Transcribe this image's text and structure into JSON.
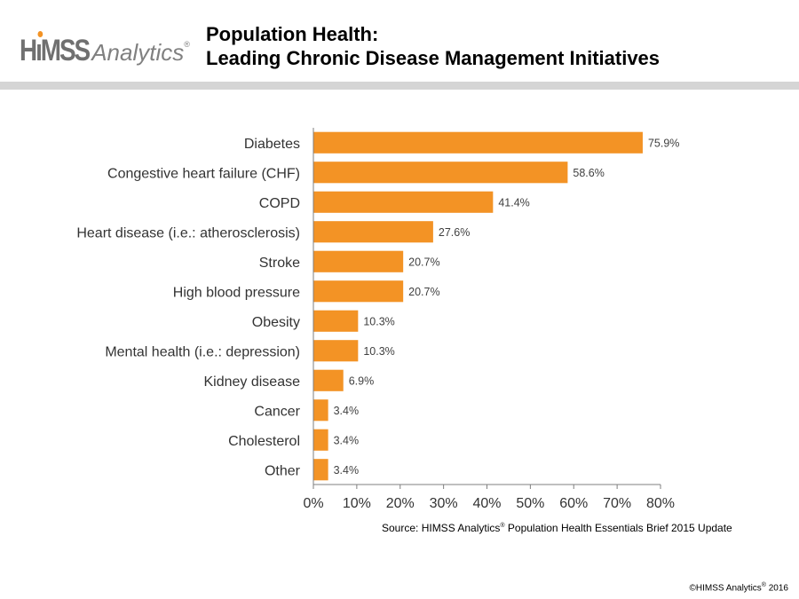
{
  "header": {
    "logo_brand": "HiMSS",
    "logo_product": "Analytics",
    "logo_mark": "®",
    "title_line1": "Population Health:",
    "title_line2": "Leading Chronic Disease Management Initiatives"
  },
  "chart_data": {
    "type": "bar",
    "orientation": "horizontal",
    "categories": [
      "Diabetes",
      "Congestive heart failure (CHF)",
      "COPD",
      "Heart disease (i.e.: atherosclerosis)",
      "Stroke",
      "High blood pressure",
      "Obesity",
      "Mental health (i.e.: depression)",
      "Kidney disease",
      "Cancer",
      "Cholesterol",
      "Other"
    ],
    "values": [
      75.9,
      58.6,
      41.4,
      27.6,
      20.7,
      20.7,
      10.3,
      10.3,
      6.9,
      3.4,
      3.4,
      3.4
    ],
    "data_labels": [
      "75.9%",
      "58.6%",
      "41.4%",
      "27.6%",
      "20.7%",
      "20.7%",
      "10.3%",
      "10.3%",
      "6.9%",
      "3.4%",
      "3.4%",
      "3.4%"
    ],
    "x_ticks": [
      0,
      10,
      20,
      30,
      40,
      50,
      60,
      70,
      80
    ],
    "x_tick_labels": [
      "0%",
      "10%",
      "20%",
      "30%",
      "40%",
      "50%",
      "60%",
      "70%",
      "80%"
    ],
    "xlim": [
      0,
      80
    ],
    "bar_color": "#f39325",
    "grid": false,
    "legend": "none"
  },
  "footer": {
    "source_prefix": "Source: HIMSS Analytics",
    "source_mark": "®",
    "source_suffix": " Population Health Essentials Brief 2015 Update",
    "copyright_prefix": "©HIMSS Analytics",
    "copyright_mark": "®",
    "copyright_suffix": " 2016"
  }
}
